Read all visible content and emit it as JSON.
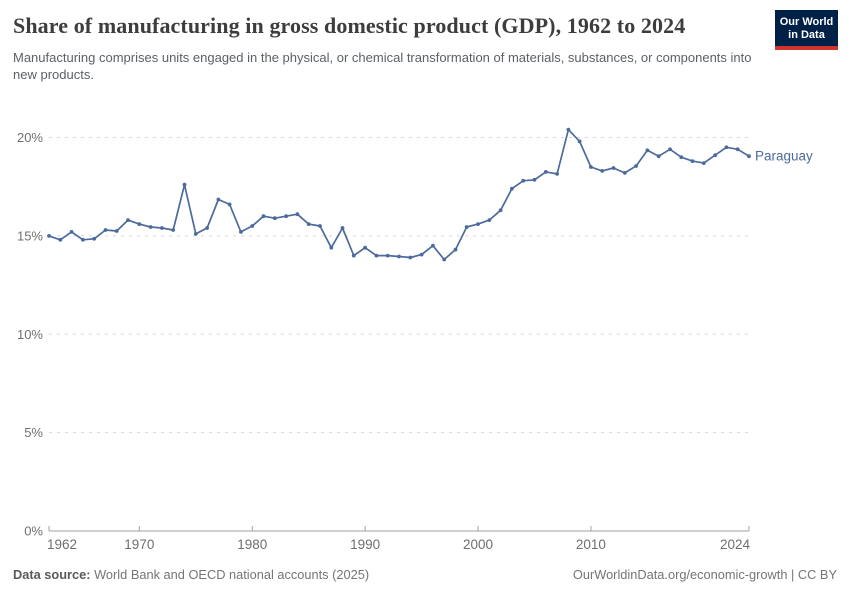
{
  "header": {
    "title": "Share of manufacturing in gross domestic product (GDP), 1962 to 2024",
    "subtitle": "Manufacturing comprises units engaged in the physical, or chemical transformation of materials, substances, or components into new products."
  },
  "logo": {
    "line1": "Our World",
    "line2": "in Data"
  },
  "colors": {
    "line": "#4c6a9c",
    "entity_label": "#4c6a9c",
    "logo_background": "#002147",
    "logo_red_bar": "#d0342c",
    "gridline": "#d8d8d8",
    "axis_line": "#a1a1a1",
    "axis_label": "#707070"
  },
  "chart_data": {
    "type": "line",
    "title": "Share of manufacturing in gross domestic product (GDP), 1962 to 2024",
    "xlabel": "",
    "ylabel": "",
    "unit": "%",
    "xlim": [
      1962,
      2024
    ],
    "ylim": [
      0,
      20
    ],
    "x_ticks": [
      1962,
      1970,
      1980,
      1990,
      2000,
      2010,
      2024
    ],
    "y_ticks": [
      0,
      5,
      10,
      15,
      20
    ],
    "y_tick_labels": [
      "0%",
      "5%",
      "10%",
      "15%",
      "20%"
    ],
    "grid": true,
    "legend_position": "end-of-line-label",
    "series": [
      {
        "name": "Paraguay",
        "years": [
          1962,
          1963,
          1964,
          1965,
          1966,
          1967,
          1968,
          1969,
          1970,
          1971,
          1972,
          1973,
          1974,
          1975,
          1976,
          1977,
          1978,
          1979,
          1980,
          1981,
          1982,
          1983,
          1984,
          1985,
          1986,
          1987,
          1988,
          1989,
          1990,
          1991,
          1992,
          1993,
          1994,
          1995,
          1996,
          1997,
          1998,
          1999,
          2000,
          2001,
          2002,
          2003,
          2004,
          2005,
          2006,
          2007,
          2008,
          2009,
          2010,
          2011,
          2012,
          2013,
          2014,
          2015,
          2016,
          2017,
          2018,
          2019,
          2020,
          2021,
          2022,
          2023,
          2024
        ],
        "values": [
          15.0,
          14.8,
          15.2,
          14.8,
          14.85,
          15.3,
          15.25,
          15.8,
          15.6,
          15.45,
          15.4,
          15.3,
          17.6,
          15.1,
          15.4,
          16.85,
          16.6,
          15.2,
          15.5,
          16.0,
          15.9,
          16.0,
          16.1,
          15.6,
          15.5,
          14.4,
          15.4,
          14.0,
          14.4,
          14.0,
          14.0,
          13.95,
          13.9,
          14.05,
          14.5,
          13.8,
          14.3,
          15.45,
          15.6,
          15.8,
          16.3,
          17.4,
          17.8,
          17.85,
          18.25,
          18.15,
          20.4,
          19.8,
          18.5,
          18.3,
          18.45,
          18.2,
          18.55,
          19.35,
          19.05,
          19.4,
          19.0,
          18.8,
          18.7,
          19.1,
          19.5,
          19.4,
          19.05
        ]
      }
    ]
  },
  "footer": {
    "datasource_label": "Data source:",
    "datasource_text": " World Bank and OECD national accounts (2025)",
    "right_text": "OurWorldinData.org/economic-growth | CC BY"
  }
}
